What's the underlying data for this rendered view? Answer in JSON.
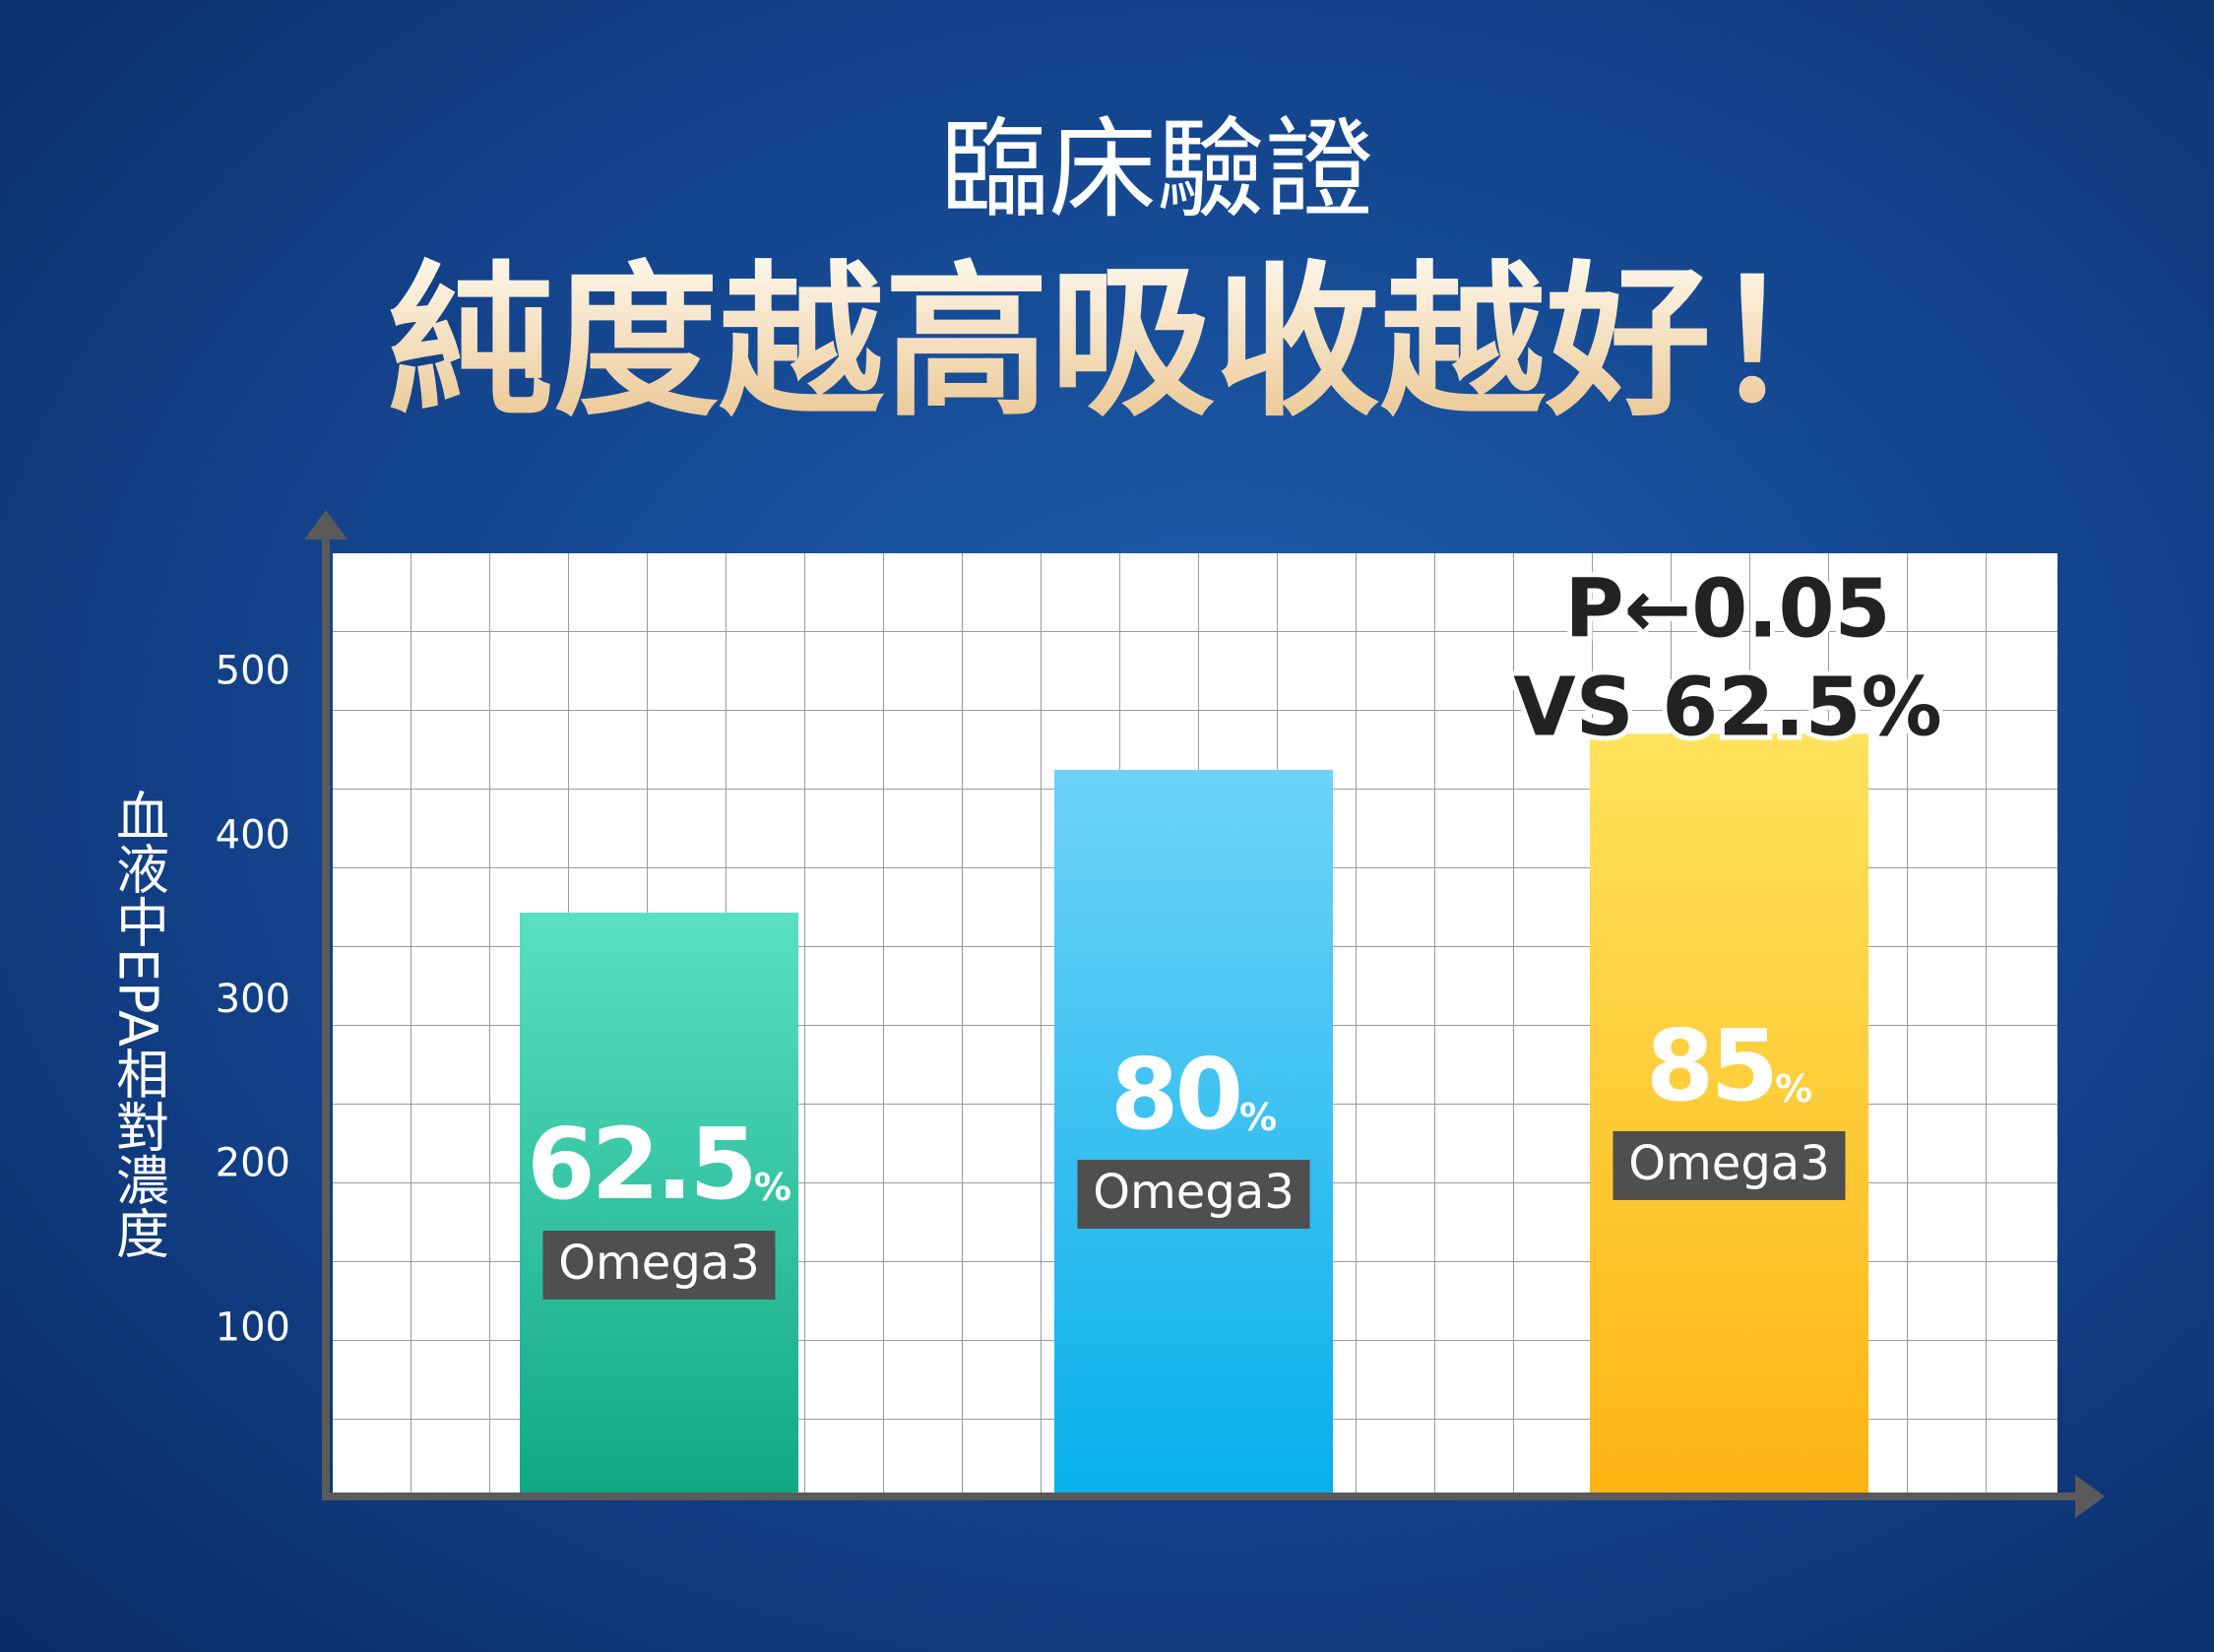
{
  "chart_data": {
    "type": "bar",
    "title": "臨床驗證",
    "subtitle": "純度越高吸收越好！",
    "y_label": "血液中EPA相對濃度",
    "categories": [
      "Omega3",
      "Omega3",
      "Omega3"
    ],
    "values": [
      354,
      441,
      463
    ],
    "purity": [
      62.5,
      80,
      85
    ],
    "purity_unit": "%",
    "colors": [
      [
        "#58e0c2",
        "#12a883"
      ],
      [
        "#6ed2f8",
        "#08afe9"
      ],
      [
        "#ffe35c",
        "#fdb414"
      ]
    ],
    "annotation": [
      "P←0.05",
      "VS 62.5%"
    ],
    "ylim": [
      0,
      573
    ],
    "yticks": [
      100,
      200,
      300,
      400,
      500
    ]
  }
}
